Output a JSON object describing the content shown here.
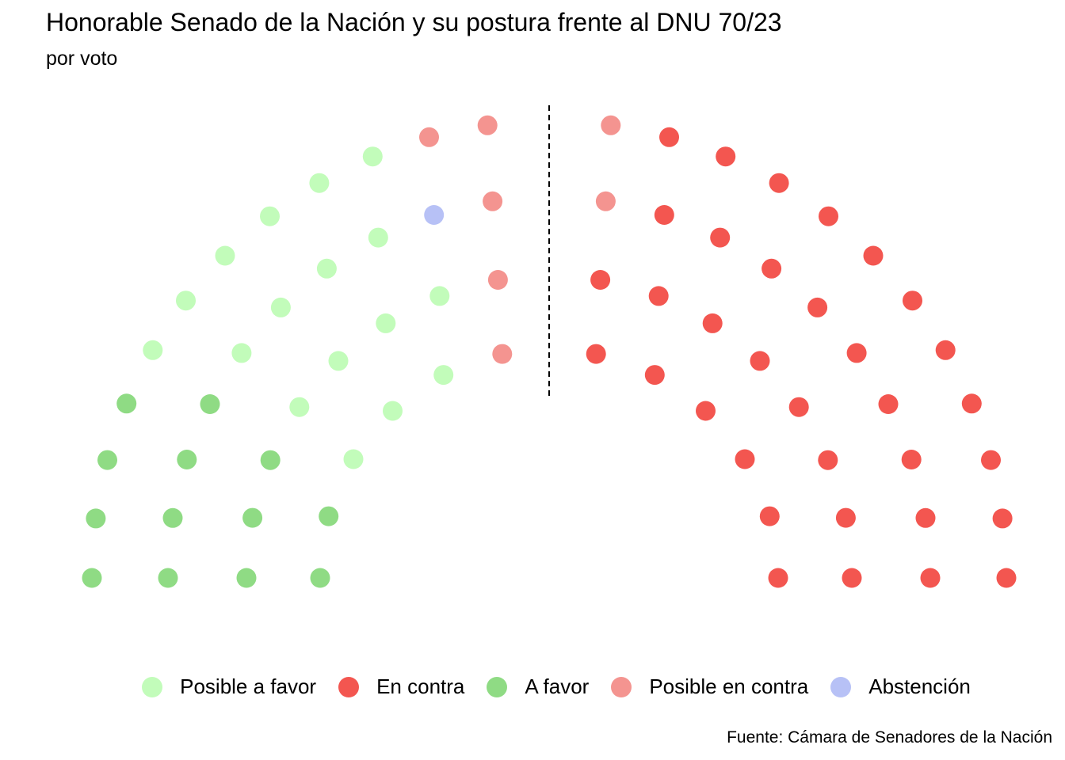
{
  "title": "Honorable Senado de la Nación y su postura frente al DNU 70/23",
  "subtitle": "por voto",
  "caption": "Fuente: Cámara de Senadores de la Nación",
  "colors": {
    "posible_favor": "#c2fcba",
    "contra": "#f35650",
    "favor": "#8fdb84",
    "posible_contra": "#f49490",
    "abstencion": "#b7c1f6"
  },
  "chart_data": {
    "type": "scatter",
    "subtype": "parliament-seats",
    "total_seats": 72,
    "grid": false,
    "legend_position": "bottom",
    "majority_line": true,
    "categories": [
      {
        "key": "posible_favor",
        "name": "Posible a favor",
        "seats": 17
      },
      {
        "key": "contra",
        "name": "En contra",
        "seats": 34
      },
      {
        "key": "favor",
        "name": "A favor",
        "seats": 13
      },
      {
        "key": "posible_contra",
        "name": "Posible en contra",
        "seats": 7
      },
      {
        "key": "abstencion",
        "name": "Abstención",
        "seats": 1
      }
    ]
  }
}
